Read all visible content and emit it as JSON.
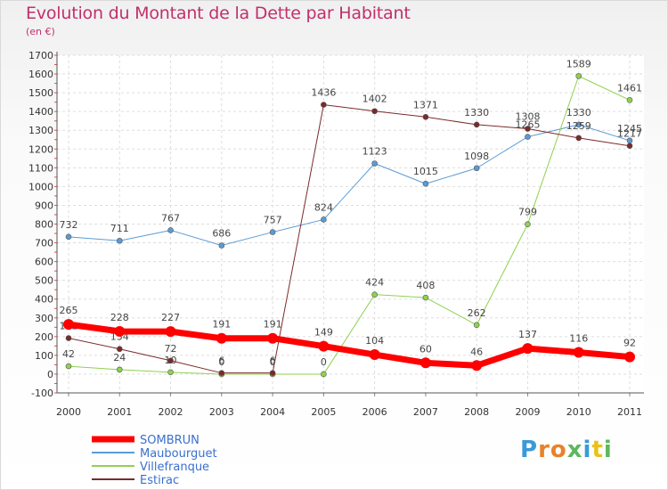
{
  "title": "Evolution du Montant de la Dette par Habitant",
  "subtitle": "(en €)",
  "logo": [
    "P",
    "r",
    "o",
    "x",
    "i",
    "t",
    "i"
  ],
  "logo_colors": [
    "#3a9ad9",
    "#e8822a",
    "#e8822a",
    "#5cb85c",
    "#3a9ad9",
    "#e8c21a",
    "#5cb85c"
  ],
  "chart_data": {
    "type": "line",
    "x": [
      "2000",
      "2001",
      "2002",
      "2003",
      "2004",
      "2005",
      "2006",
      "2007",
      "2008",
      "2009",
      "2010",
      "2011"
    ],
    "ylim": [
      -100,
      1700
    ],
    "yticks": [
      -100,
      0,
      100,
      200,
      300,
      400,
      500,
      600,
      700,
      800,
      900,
      1000,
      1100,
      1200,
      1300,
      1400,
      1500,
      1600,
      1700
    ],
    "grid": true,
    "legend_position": "bottom-left",
    "series": [
      {
        "name": "Maubourguet",
        "color": "#5b9bd5",
        "width": 1,
        "values": [
          732,
          711,
          767,
          686,
          757,
          824,
          1123,
          1015,
          1098,
          1265,
          1330,
          1245
        ],
        "labels": [
          "732",
          "711",
          "767",
          "686",
          "757",
          "824",
          "1123",
          "1015",
          "1098",
          "1265",
          "1330",
          "1245"
        ]
      },
      {
        "name": "Villefranque",
        "color": "#8fd14f",
        "width": 1,
        "values": [
          42,
          24,
          10,
          0,
          0,
          0,
          424,
          408,
          262,
          799,
          1589,
          1461
        ],
        "labels": [
          "42",
          "24",
          "10",
          "0",
          "0",
          "0",
          "424",
          "408",
          "262",
          "799",
          "1589",
          "1461"
        ]
      },
      {
        "name": "Estirac",
        "color": "#7b2a2a",
        "width": 1,
        "values": [
          192,
          134,
          72,
          6,
          6,
          1436,
          1402,
          1371,
          1330,
          1308,
          1259,
          1217
        ],
        "labels": [
          "192",
          "134",
          "72",
          "6",
          "6",
          "1436",
          "1402",
          "1371",
          "1330",
          "1308",
          "1259",
          "1217"
        ]
      },
      {
        "name": "SOMBRUN",
        "color": "#ff0000",
        "width": 7,
        "values": [
          265,
          228,
          227,
          191,
          191,
          149,
          104,
          60,
          46,
          137,
          116,
          92
        ],
        "labels": [
          "265",
          "228",
          "227",
          "191",
          "191",
          "149",
          "104",
          "60",
          "46",
          "137",
          "116",
          "92"
        ]
      }
    ],
    "legend": [
      {
        "name": "SOMBRUN",
        "color": "#ff0000",
        "width": 7
      },
      {
        "name": "Maubourguet",
        "color": "#5b9bd5",
        "width": 2
      },
      {
        "name": "Villefranque",
        "color": "#8fd14f",
        "width": 2
      },
      {
        "name": "Estirac",
        "color": "#7b2a2a",
        "width": 2
      }
    ]
  }
}
